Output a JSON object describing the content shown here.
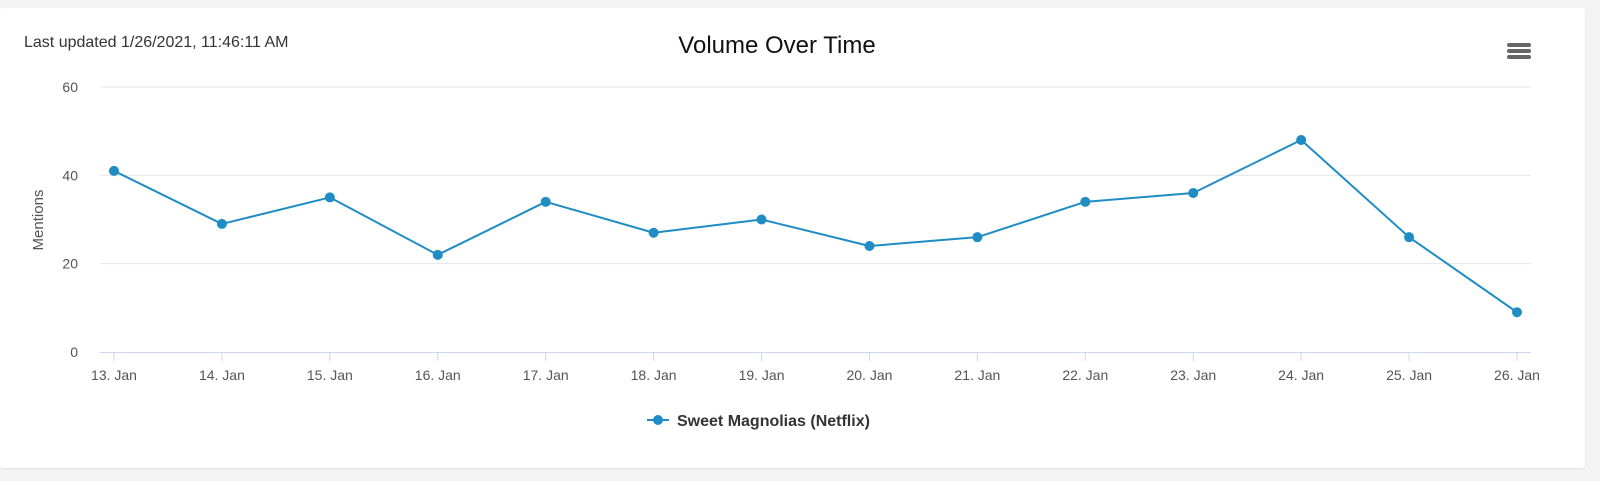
{
  "header": {
    "last_updated": "Last updated 1/26/2021, 11:46:11 AM"
  },
  "menu": {
    "icon": "hamburger-icon"
  },
  "colors": {
    "series": "#1f8dc4",
    "grid": "#e6e6e6",
    "axis": "#ccd6eb"
  },
  "chart_data": {
    "type": "line",
    "title": "Volume Over Time",
    "xlabel": "",
    "ylabel": "Mentions",
    "ylim": [
      0,
      60
    ],
    "yticks": [
      0,
      20,
      40,
      60
    ],
    "categories": [
      "13. Jan",
      "14. Jan",
      "15. Jan",
      "16. Jan",
      "17. Jan",
      "18. Jan",
      "19. Jan",
      "20. Jan",
      "21. Jan",
      "22. Jan",
      "23. Jan",
      "24. Jan",
      "25. Jan",
      "26. Jan"
    ],
    "series": [
      {
        "name": "Sweet Magnolias (Netflix)",
        "values": [
          41,
          29,
          35,
          22,
          34,
          27,
          30,
          24,
          26,
          34,
          36,
          48,
          26,
          9
        ]
      }
    ],
    "grid": true,
    "legend": "bottom-center"
  }
}
